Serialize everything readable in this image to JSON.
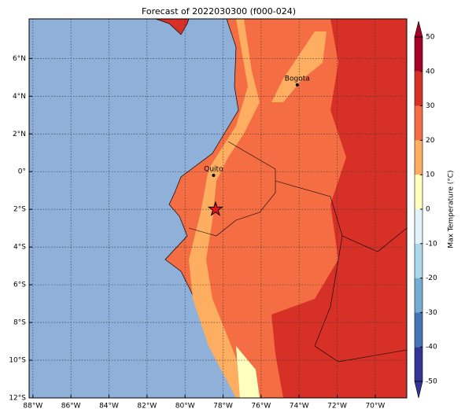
{
  "map": {
    "title": "Forecast of 2022030300 (f000-024)",
    "lon_range": [
      -88.2,
      -68.34
    ],
    "lat_range": [
      -12,
      8.1
    ],
    "lon_ticks": [
      {
        "value": -88,
        "label": "88°W"
      },
      {
        "value": -86,
        "label": "86°W"
      },
      {
        "value": -84,
        "label": "84°W"
      },
      {
        "value": -82,
        "label": "82°W"
      },
      {
        "value": -80,
        "label": "80°W"
      },
      {
        "value": -78,
        "label": "78°W"
      },
      {
        "value": -76,
        "label": "76°W"
      },
      {
        "value": -74,
        "label": "74°W"
      },
      {
        "value": -72,
        "label": "72°W"
      },
      {
        "value": -70,
        "label": "70°W"
      }
    ],
    "lat_ticks": [
      {
        "value": 6,
        "label": "6°N"
      },
      {
        "value": 4,
        "label": "4°N"
      },
      {
        "value": 2,
        "label": "2°N"
      },
      {
        "value": 0,
        "label": "0°"
      },
      {
        "value": -2,
        "label": "2°S"
      },
      {
        "value": -4,
        "label": "4°S"
      },
      {
        "value": -6,
        "label": "6°S"
      },
      {
        "value": -8,
        "label": "8°S"
      },
      {
        "value": -10,
        "label": "10°S"
      },
      {
        "value": -12,
        "label": "12°S"
      }
    ],
    "cities": [
      {
        "name": "Bogota",
        "lon": -74.1,
        "lat": 4.6
      },
      {
        "name": "Quito",
        "lon": -78.5,
        "lat": -0.2
      }
    ],
    "star": {
      "lon": -78.4,
      "lat": -2
    },
    "colorbar": {
      "label": "Max Temperature (°C)",
      "ticks": [
        -50,
        -40,
        -30,
        -20,
        -10,
        0,
        10,
        20,
        30,
        40,
        50
      ],
      "colors": [
        "#313695",
        "#4575b4",
        "#74add1",
        "#abd9e9",
        "#e0f3f8",
        "#ffffbf",
        "#fdae61",
        "#f46d43",
        "#d73027",
        "#a50026"
      ]
    }
  }
}
